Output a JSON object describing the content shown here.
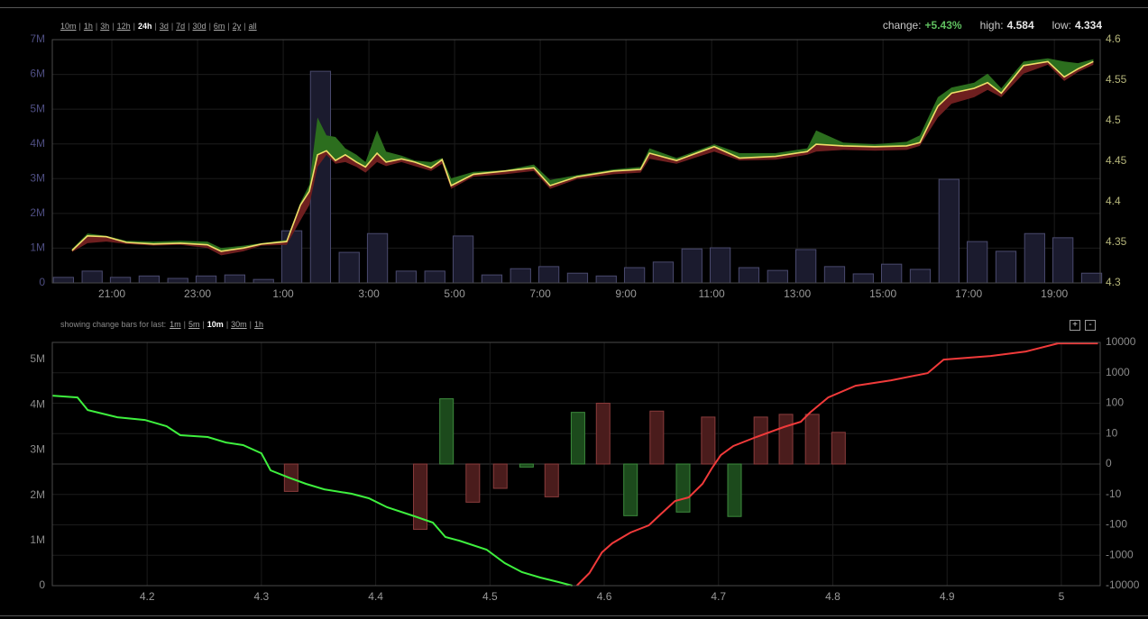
{
  "toolbar": {
    "ranges": [
      "10m",
      "1h",
      "3h",
      "12h",
      "24h",
      "3d",
      "7d",
      "30d",
      "6m",
      "2y",
      "all"
    ],
    "active": "24h",
    "separator": "|"
  },
  "stats": [
    {
      "label": "change:",
      "value": "+5.43%",
      "color": "#5fbf5f"
    },
    {
      "label": "high:",
      "value": "4.584"
    },
    {
      "label": "low:",
      "value": "4.334"
    }
  ],
  "depth_toolbar": {
    "caption": "showing change bars for last:",
    "ranges": [
      "1m",
      "5m",
      "10m",
      "30m",
      "1h"
    ],
    "active": "10m",
    "separator": "|"
  },
  "zoom_buttons": [
    "+",
    "-"
  ],
  "chart_data": [
    {
      "type": "price-volume",
      "x": [
        20.07,
        20.43,
        20.87,
        21.34,
        21.97,
        22.6,
        23.23,
        23.55,
        24.07,
        24.49,
        25.08,
        25.4,
        25.61,
        25.8,
        26.01,
        26.22,
        26.45,
        26.71,
        26.92,
        27.19,
        27.4,
        27.76,
        28.07,
        28.45,
        28.71,
        28.92,
        29.44,
        30.18,
        30.85,
        31.23,
        31.86,
        32.71,
        33.34,
        33.55,
        34.18,
        35.06,
        35.65,
        36.49,
        37.23,
        37.44,
        38.07,
        38.81,
        39.55,
        39.86,
        40.28,
        40.6,
        41.13,
        41.44,
        41.76,
        42.28,
        42.85,
        43.23,
        43.55,
        43.91
      ],
      "price": {
        "color": "#f0de6a",
        "values": [
          4.34,
          4.358,
          4.357,
          4.35,
          4.348,
          4.349,
          4.347,
          4.339,
          4.343,
          4.348,
          4.351,
          4.396,
          4.413,
          4.458,
          4.463,
          4.451,
          4.458,
          4.449,
          4.443,
          4.46,
          4.449,
          4.453,
          4.449,
          4.442,
          4.452,
          4.42,
          4.434,
          4.438,
          4.442,
          4.42,
          4.431,
          4.438,
          4.44,
          4.46,
          4.451,
          4.468,
          4.454,
          4.456,
          4.462,
          4.471,
          4.469,
          4.468,
          4.469,
          4.473,
          4.518,
          4.534,
          4.54,
          4.547,
          4.534,
          4.568,
          4.573,
          4.554,
          4.564,
          4.573
        ]
      },
      "high": {
        "color": "#2c6e1e",
        "values": [
          4.342,
          4.361,
          4.358,
          4.352,
          4.351,
          4.352,
          4.351,
          4.343,
          4.346,
          4.349,
          4.353,
          4.399,
          4.421,
          4.504,
          4.482,
          4.48,
          4.466,
          4.458,
          4.449,
          4.488,
          4.462,
          4.457,
          4.451,
          4.449,
          4.454,
          4.429,
          4.437,
          4.439,
          4.446,
          4.427,
          4.433,
          4.44,
          4.443,
          4.466,
          4.454,
          4.471,
          4.46,
          4.46,
          4.466,
          4.488,
          4.473,
          4.471,
          4.474,
          4.482,
          4.529,
          4.541,
          4.547,
          4.558,
          4.54,
          4.573,
          4.577,
          4.573,
          4.571,
          4.576
        ]
      },
      "low": {
        "color": "#6e1f1f",
        "values": [
          4.338,
          4.349,
          4.351,
          4.348,
          4.346,
          4.347,
          4.343,
          4.334,
          4.339,
          4.346,
          4.347,
          4.377,
          4.396,
          4.443,
          4.458,
          4.447,
          4.449,
          4.443,
          4.436,
          4.449,
          4.444,
          4.449,
          4.444,
          4.438,
          4.447,
          4.416,
          4.431,
          4.434,
          4.438,
          4.416,
          4.428,
          4.434,
          4.436,
          4.453,
          4.447,
          4.462,
          4.451,
          4.452,
          4.458,
          4.462,
          4.464,
          4.463,
          4.464,
          4.469,
          4.504,
          4.521,
          4.529,
          4.538,
          4.529,
          4.558,
          4.569,
          4.549,
          4.56,
          4.569
        ]
      },
      "volume": {
        "color": "#1b1b2e",
        "edge_color": "#4a4a6e",
        "x": [
          19.87,
          20.54,
          21.2,
          21.87,
          22.54,
          23.2,
          23.87,
          24.54,
          25.2,
          25.87,
          26.54,
          27.2,
          27.87,
          28.54,
          29.2,
          29.87,
          30.54,
          31.2,
          31.87,
          32.54,
          33.2,
          33.87,
          34.54,
          35.2,
          35.87,
          36.54,
          37.2,
          37.87,
          38.54,
          39.2,
          39.87,
          40.54,
          41.2,
          41.87,
          42.54,
          43.2,
          43.87
        ],
        "values": [
          160000,
          340000,
          160000,
          200000,
          130000,
          200000,
          230000,
          100000,
          1500000,
          6090000,
          880000,
          1420000,
          340000,
          340000,
          1350000,
          230000,
          410000,
          470000,
          280000,
          200000,
          440000,
          600000,
          980000,
          1010000,
          440000,
          360000,
          960000,
          470000,
          260000,
          540000,
          390000,
          2980000,
          1190000,
          910000,
          1420000,
          1300000,
          280000
        ]
      },
      "xlim": [
        19.61,
        44.07
      ],
      "xticks": [
        {
          "value": 21,
          "label": "21:00"
        },
        {
          "value": 23,
          "label": "23:00"
        },
        {
          "value": 25,
          "label": "1:00"
        },
        {
          "value": 27,
          "label": "3:00"
        },
        {
          "value": 29,
          "label": "5:00"
        },
        {
          "value": 31,
          "label": "7:00"
        },
        {
          "value": 33,
          "label": "9:00"
        },
        {
          "value": 35,
          "label": "11:00"
        },
        {
          "value": 37,
          "label": "13:00"
        },
        {
          "value": 39,
          "label": "15:00"
        },
        {
          "value": 41,
          "label": "17:00"
        },
        {
          "value": 43,
          "label": "19:00"
        }
      ],
      "ylim": [
        0,
        7000000
      ],
      "yticks": [
        0,
        {
          "value": 1000000,
          "label": "1M"
        },
        {
          "value": 2000000,
          "label": "2M"
        },
        {
          "value": 3000000,
          "label": "3M"
        },
        {
          "value": 4000000,
          "label": "4M"
        },
        {
          "value": 5000000,
          "label": "5M"
        },
        {
          "value": 6000000,
          "label": "6M"
        },
        {
          "value": 7000000,
          "label": "7M"
        }
      ],
      "y2lim": [
        4.3,
        4.6
      ],
      "y2ticks": [
        4.3,
        4.35,
        4.4,
        4.45,
        4.5,
        4.55,
        4.6
      ],
      "grid": true
    },
    {
      "type": "depth",
      "bids": {
        "color": "#3ef03e",
        "x": [
          4.117,
          4.139,
          4.148,
          4.174,
          4.198,
          4.217,
          4.229,
          4.253,
          4.269,
          4.284,
          4.3,
          4.308,
          4.324,
          4.339,
          4.355,
          4.379,
          4.394,
          4.41,
          4.434,
          4.45,
          4.461,
          4.473,
          4.497,
          4.513,
          4.528,
          4.544,
          4.56,
          4.572
        ],
        "values": [
          4203000,
          4163000,
          3884000,
          3725000,
          3665000,
          3526000,
          3327000,
          3287000,
          3167000,
          3108000,
          2928000,
          2550000,
          2390000,
          2251000,
          2131000,
          2032000,
          1932000,
          1733000,
          1534000,
          1394000,
          1076000,
          996000,
          797000,
          498000,
          299000,
          179000,
          80000,
          0
        ]
      },
      "asks": {
        "color": "#f03a3a",
        "x": [
          4.576,
          4.587,
          4.598,
          4.607,
          4.623,
          4.639,
          4.65,
          4.662,
          4.674,
          4.686,
          4.694,
          4.702,
          4.713,
          4.733,
          4.757,
          4.772,
          4.78,
          4.796,
          4.82,
          4.851,
          4.883,
          4.897,
          4.938,
          4.969,
          4.997,
          5.032
        ],
        "values": [
          0,
          279000,
          737000,
          936000,
          1175000,
          1335000,
          1594000,
          1873000,
          1952000,
          2251000,
          2590000,
          2888000,
          3088000,
          3287000,
          3506000,
          3625000,
          3825000,
          4163000,
          4422000,
          4542000,
          4701000,
          5000000,
          5080000,
          5179000,
          5359000,
          5359000
        ]
      },
      "change_bars": {
        "axis": "y2",
        "x": [
          4.326,
          4.439,
          4.462,
          4.485,
          4.509,
          4.532,
          4.554,
          4.577,
          4.599,
          4.623,
          4.646,
          4.669,
          4.691,
          4.714,
          4.737,
          4.759,
          4.782,
          4.805
        ],
        "values": [
          -9,
          -140,
          140,
          -18,
          -8,
          -1,
          -12,
          50,
          100,
          -50,
          55,
          -38,
          35,
          -53,
          35,
          43,
          43,
          11
        ],
        "colors": [
          "#4a1c1c",
          "#4a1c1c",
          "#1c4a1c",
          "#4a1c1c",
          "#4a1c1c",
          "#1c4a1c",
          "#4a1c1c",
          "#1c4a1c",
          "#4a1c1c",
          "#1c4a1c",
          "#4a1c1c",
          "#1c4a1c",
          "#4a1c1c",
          "#1c4a1c",
          "#4a1c1c",
          "#4a1c1c",
          "#4a1c1c",
          "#4a1c1c"
        ]
      },
      "xlim": [
        4.117,
        5.034
      ],
      "xticks": [
        4.2,
        4.3,
        4.4,
        4.5,
        4.6,
        4.7,
        4.8,
        4.9,
        5
      ],
      "ylim": [
        0,
        5380000
      ],
      "yticks": [
        0,
        {
          "value": 1000000,
          "label": "1M"
        },
        {
          "value": 2000000,
          "label": "2M"
        },
        {
          "value": 3000000,
          "label": "3M"
        },
        {
          "value": 4000000,
          "label": "4M"
        },
        {
          "value": 5000000,
          "label": "5M"
        }
      ],
      "y2lim": [
        -10000,
        10000
      ],
      "y2ticks": [
        10000,
        1000,
        100,
        10,
        0,
        -10,
        -100,
        -1000,
        -10000
      ],
      "y2scale": "symlog",
      "grid": true
    }
  ]
}
